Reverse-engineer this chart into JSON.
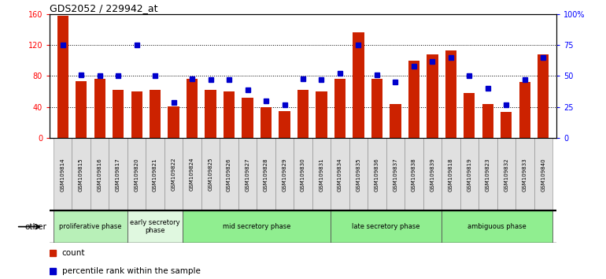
{
  "title": "GDS2052 / 229942_at",
  "samples": [
    "GSM109814",
    "GSM109815",
    "GSM109816",
    "GSM109817",
    "GSM109820",
    "GSM109821",
    "GSM109822",
    "GSM109824",
    "GSM109825",
    "GSM109826",
    "GSM109827",
    "GSM109828",
    "GSM109829",
    "GSM109830",
    "GSM109831",
    "GSM109834",
    "GSM109835",
    "GSM109836",
    "GSM109837",
    "GSM109838",
    "GSM109839",
    "GSM109818",
    "GSM109819",
    "GSM109823",
    "GSM109832",
    "GSM109833",
    "GSM109840"
  ],
  "count": [
    158,
    73,
    76,
    62,
    60,
    62,
    41,
    76,
    62,
    60,
    52,
    40,
    35,
    62,
    60,
    76,
    136,
    76,
    44,
    100,
    108,
    113,
    58,
    44,
    34,
    72,
    108
  ],
  "percentile": [
    75,
    51,
    50,
    50,
    75,
    50,
    29,
    48,
    47,
    47,
    39,
    30,
    27,
    48,
    47,
    52,
    75,
    51,
    45,
    58,
    62,
    65,
    50,
    40,
    27,
    47,
    65
  ],
  "phases": [
    {
      "name": "proliferative phase",
      "start": 0,
      "end": 4,
      "color": "#b8f0b8"
    },
    {
      "name": "early secretory\nphase",
      "start": 4,
      "end": 7,
      "color": "#e0f8e0"
    },
    {
      "name": "mid secretory phase",
      "start": 7,
      "end": 15,
      "color": "#90EE90"
    },
    {
      "name": "late secretory phase",
      "start": 15,
      "end": 21,
      "color": "#90EE90"
    },
    {
      "name": "ambiguous phase",
      "start": 21,
      "end": 27,
      "color": "#90EE90"
    }
  ],
  "bar_color": "#cc2200",
  "dot_color": "#0000cc",
  "ylim_left": [
    0,
    160
  ],
  "ylim_right": [
    0,
    100
  ],
  "yticks_left": [
    0,
    40,
    80,
    120,
    160
  ],
  "yticks_right": [
    0,
    25,
    50,
    75,
    100
  ],
  "ytick_labels_right": [
    "0",
    "25",
    "50",
    "75",
    "100%"
  ],
  "tick_bg_color": "#e0e0e0",
  "other_label": "other"
}
